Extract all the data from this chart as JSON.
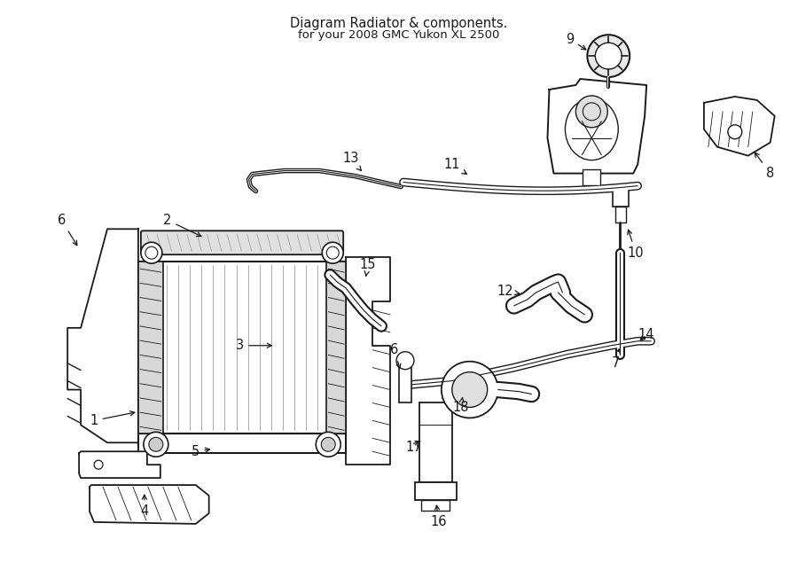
{
  "title": "Diagram Radiator & components.",
  "subtitle": "for your 2008 GMC Yukon XL 2500",
  "bg_color": "#ffffff",
  "line_color": "#1a1a1a",
  "text_color": "#1a1a1a",
  "fig_width": 9.0,
  "fig_height": 6.61,
  "dpi": 100
}
